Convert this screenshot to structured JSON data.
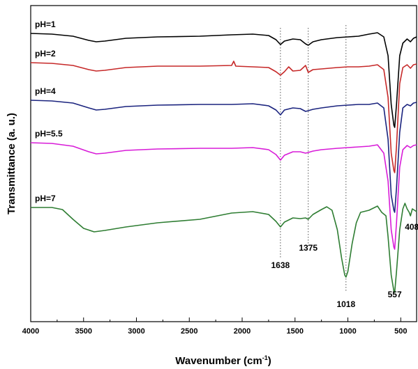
{
  "chart_data": {
    "type": "line",
    "title": "",
    "xlabel": "Wavenumber (cm",
    "xlabel_sup": "-1",
    "xlabel_close": ")",
    "ylabel": "Transmittance (a. u.)",
    "xlim": [
      4000,
      350
    ],
    "x_reversed": true,
    "yaxis_ticks": false,
    "grid": false,
    "x_ticks": [
      4000,
      3500,
      3000,
      2500,
      2000,
      1500,
      1000,
      500
    ],
    "x_tick_labels": [
      "4000",
      "3500",
      "3000",
      "2500",
      "2000",
      "1500",
      "1000",
      "500"
    ],
    "reference_lines": [
      1638,
      1375,
      1018
    ],
    "annotations": [
      {
        "text": "1638",
        "x": 1638
      },
      {
        "text": "1375",
        "x": 1375
      },
      {
        "text": "1018",
        "x": 1018
      },
      {
        "text": "557",
        "x": 557
      },
      {
        "text": "408",
        "x": 408
      }
    ],
    "series": [
      {
        "name": "pH=1",
        "color": "#000000",
        "points": [
          [
            4000,
            48
          ],
          [
            3800,
            49
          ],
          [
            3600,
            52
          ],
          [
            3450,
            58
          ],
          [
            3380,
            60
          ],
          [
            3300,
            59
          ],
          [
            3100,
            55
          ],
          [
            2800,
            53
          ],
          [
            2400,
            52
          ],
          [
            2100,
            50
          ],
          [
            1900,
            49
          ],
          [
            1750,
            51
          ],
          [
            1680,
            57
          ],
          [
            1638,
            64
          ],
          [
            1600,
            59
          ],
          [
            1520,
            56
          ],
          [
            1450,
            57
          ],
          [
            1400,
            63
          ],
          [
            1375,
            65
          ],
          [
            1330,
            60
          ],
          [
            1250,
            57
          ],
          [
            1100,
            54
          ],
          [
            1000,
            53
          ],
          [
            900,
            52
          ],
          [
            800,
            49
          ],
          [
            720,
            47
          ],
          [
            660,
            53
          ],
          [
            620,
            80
          ],
          [
            590,
            150
          ],
          [
            565,
            180
          ],
          [
            557,
            183
          ],
          [
            540,
            150
          ],
          [
            510,
            80
          ],
          [
            480,
            62
          ],
          [
            440,
            56
          ],
          [
            408,
            60
          ],
          [
            380,
            55
          ],
          [
            350,
            53
          ]
        ]
      },
      {
        "name": "pH=2",
        "color": "#c62828",
        "points": [
          [
            4000,
            90
          ],
          [
            3800,
            91
          ],
          [
            3600,
            94
          ],
          [
            3450,
            100
          ],
          [
            3380,
            102
          ],
          [
            3300,
            101
          ],
          [
            3100,
            97
          ],
          [
            2800,
            95
          ],
          [
            2400,
            95
          ],
          [
            2100,
            94
          ],
          [
            2080,
            88
          ],
          [
            2060,
            95
          ],
          [
            1900,
            96
          ],
          [
            1750,
            97
          ],
          [
            1680,
            103
          ],
          [
            1638,
            108
          ],
          [
            1600,
            103
          ],
          [
            1560,
            96
          ],
          [
            1520,
            102
          ],
          [
            1450,
            101
          ],
          [
            1400,
            94
          ],
          [
            1375,
            104
          ],
          [
            1330,
            100
          ],
          [
            1250,
            99
          ],
          [
            1100,
            97
          ],
          [
            1000,
            96
          ],
          [
            900,
            96
          ],
          [
            800,
            95
          ],
          [
            720,
            93
          ],
          [
            660,
            100
          ],
          [
            620,
            140
          ],
          [
            590,
            220
          ],
          [
            565,
            245
          ],
          [
            557,
            248
          ],
          [
            540,
            210
          ],
          [
            510,
            120
          ],
          [
            480,
            97
          ],
          [
            440,
            93
          ],
          [
            408,
            98
          ],
          [
            380,
            93
          ],
          [
            350,
            92
          ]
        ]
      },
      {
        "name": "pH=4",
        "color": "#1a237e",
        "points": [
          [
            4000,
            144
          ],
          [
            3800,
            145
          ],
          [
            3600,
            148
          ],
          [
            3450,
            155
          ],
          [
            3380,
            158
          ],
          [
            3300,
            157
          ],
          [
            3100,
            153
          ],
          [
            2800,
            151
          ],
          [
            2400,
            150
          ],
          [
            2100,
            150
          ],
          [
            1900,
            149
          ],
          [
            1750,
            152
          ],
          [
            1680,
            158
          ],
          [
            1638,
            165
          ],
          [
            1600,
            158
          ],
          [
            1520,
            155
          ],
          [
            1450,
            156
          ],
          [
            1400,
            160
          ],
          [
            1375,
            159
          ],
          [
            1330,
            157
          ],
          [
            1250,
            155
          ],
          [
            1100,
            152
          ],
          [
            1000,
            151
          ],
          [
            900,
            150
          ],
          [
            800,
            150
          ],
          [
            720,
            148
          ],
          [
            660,
            155
          ],
          [
            620,
            200
          ],
          [
            590,
            280
          ],
          [
            565,
            302
          ],
          [
            557,
            305
          ],
          [
            540,
            270
          ],
          [
            510,
            190
          ],
          [
            480,
            155
          ],
          [
            440,
            150
          ],
          [
            408,
            152
          ],
          [
            380,
            148
          ],
          [
            350,
            147
          ]
        ]
      },
      {
        "name": "pH=5.5",
        "color": "#d81bd8",
        "points": [
          [
            4000,
            205
          ],
          [
            3800,
            206
          ],
          [
            3600,
            210
          ],
          [
            3450,
            218
          ],
          [
            3380,
            221
          ],
          [
            3300,
            220
          ],
          [
            3100,
            216
          ],
          [
            2800,
            214
          ],
          [
            2400,
            213
          ],
          [
            2100,
            213
          ],
          [
            1900,
            212
          ],
          [
            1750,
            215
          ],
          [
            1680,
            222
          ],
          [
            1638,
            230
          ],
          [
            1600,
            223
          ],
          [
            1520,
            218
          ],
          [
            1450,
            218
          ],
          [
            1400,
            220
          ],
          [
            1375,
            219
          ],
          [
            1330,
            217
          ],
          [
            1250,
            215
          ],
          [
            1100,
            213
          ],
          [
            1000,
            212
          ],
          [
            900,
            211
          ],
          [
            800,
            210
          ],
          [
            720,
            208
          ],
          [
            660,
            220
          ],
          [
            620,
            260
          ],
          [
            590,
            330
          ],
          [
            565,
            355
          ],
          [
            557,
            358
          ],
          [
            540,
            320
          ],
          [
            510,
            240
          ],
          [
            480,
            215
          ],
          [
            440,
            209
          ],
          [
            408,
            212
          ],
          [
            380,
            209
          ],
          [
            350,
            208
          ]
        ]
      },
      {
        "name": "pH=7",
        "color": "#2e7d32",
        "points": [
          [
            4000,
            298
          ],
          [
            3800,
            298
          ],
          [
            3700,
            301
          ],
          [
            3600,
            315
          ],
          [
            3500,
            328
          ],
          [
            3400,
            333
          ],
          [
            3300,
            331
          ],
          [
            3100,
            326
          ],
          [
            2800,
            320
          ],
          [
            2400,
            315
          ],
          [
            2200,
            309
          ],
          [
            2100,
            306
          ],
          [
            1900,
            304
          ],
          [
            1750,
            308
          ],
          [
            1680,
            318
          ],
          [
            1638,
            326
          ],
          [
            1600,
            319
          ],
          [
            1520,
            313
          ],
          [
            1450,
            314
          ],
          [
            1400,
            313
          ],
          [
            1375,
            315
          ],
          [
            1330,
            308
          ],
          [
            1250,
            301
          ],
          [
            1200,
            297
          ],
          [
            1150,
            302
          ],
          [
            1100,
            330
          ],
          [
            1060,
            370
          ],
          [
            1030,
            395
          ],
          [
            1018,
            398
          ],
          [
            1000,
            390
          ],
          [
            960,
            350
          ],
          [
            920,
            320
          ],
          [
            880,
            305
          ],
          [
            800,
            302
          ],
          [
            720,
            296
          ],
          [
            680,
            305
          ],
          [
            640,
            310
          ],
          [
            620,
            340
          ],
          [
            590,
            395
          ],
          [
            565,
            418
          ],
          [
            557,
            420
          ],
          [
            540,
            390
          ],
          [
            510,
            330
          ],
          [
            480,
            300
          ],
          [
            460,
            292
          ],
          [
            440,
            300
          ],
          [
            420,
            305
          ],
          [
            408,
            310
          ],
          [
            390,
            300
          ],
          [
            370,
            302
          ],
          [
            350,
            304
          ]
        ]
      }
    ]
  }
}
